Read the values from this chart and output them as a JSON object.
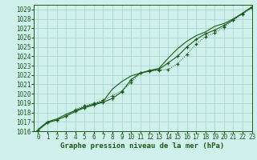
{
  "title": "Graphe pression niveau de la mer (hPa)",
  "background_color": "#d0f0ec",
  "grid_color": "#aad8d0",
  "line_color": "#1a5c1a",
  "xlim": [
    -0.5,
    23
  ],
  "ylim": [
    1016,
    1029.5
  ],
  "xticks": [
    0,
    1,
    2,
    3,
    4,
    5,
    6,
    7,
    8,
    9,
    10,
    11,
    12,
    13,
    14,
    15,
    16,
    17,
    18,
    19,
    20,
    21,
    22,
    23
  ],
  "yticks": [
    1016,
    1017,
    1018,
    1019,
    1020,
    1021,
    1022,
    1023,
    1024,
    1025,
    1026,
    1027,
    1028,
    1029
  ],
  "s1_x": [
    0,
    1,
    2,
    3,
    4,
    5,
    6,
    7,
    8,
    9,
    10,
    11,
    12,
    13,
    14,
    15,
    16,
    17,
    18,
    19,
    20,
    21,
    22,
    23
  ],
  "s1_y": [
    1016.1,
    1016.9,
    1017.2,
    1017.6,
    1018.3,
    1018.7,
    1019.0,
    1019.3,
    1019.8,
    1020.3,
    1021.2,
    1022.2,
    1022.5,
    1022.5,
    1022.6,
    1023.2,
    1024.2,
    1025.3,
    1026.1,
    1026.5,
    1027.1,
    1027.9,
    1028.5,
    1029.2
  ],
  "s2_x": [
    0,
    1,
    2,
    3,
    4,
    5,
    6,
    7,
    8,
    9,
    10,
    11,
    12,
    13,
    14,
    15,
    16,
    17,
    18,
    19,
    20,
    21,
    22,
    23
  ],
  "s2_y": [
    1016.2,
    1017.0,
    1017.3,
    1017.8,
    1018.2,
    1018.6,
    1018.9,
    1019.2,
    1020.5,
    1021.3,
    1021.9,
    1022.2,
    1022.5,
    1022.7,
    1023.8,
    1024.8,
    1025.6,
    1026.2,
    1026.6,
    1027.2,
    1027.5,
    1028.0,
    1028.6,
    1029.3
  ],
  "s3_x": [
    0,
    1,
    2,
    3,
    4,
    5,
    6,
    7,
    8,
    9,
    10,
    11,
    12,
    13,
    14,
    15,
    16,
    17,
    18,
    19,
    20,
    21,
    22,
    23
  ],
  "s3_y": [
    1016.1,
    1016.9,
    1017.2,
    1017.6,
    1018.1,
    1018.5,
    1018.8,
    1019.1,
    1019.5,
    1020.2,
    1021.5,
    1022.2,
    1022.4,
    1022.6,
    1023.3,
    1024.0,
    1025.0,
    1025.8,
    1026.4,
    1026.8,
    1027.3,
    1027.9,
    1028.6,
    1029.2
  ],
  "tick_fontsize": 5.5,
  "title_fontsize": 6.5
}
